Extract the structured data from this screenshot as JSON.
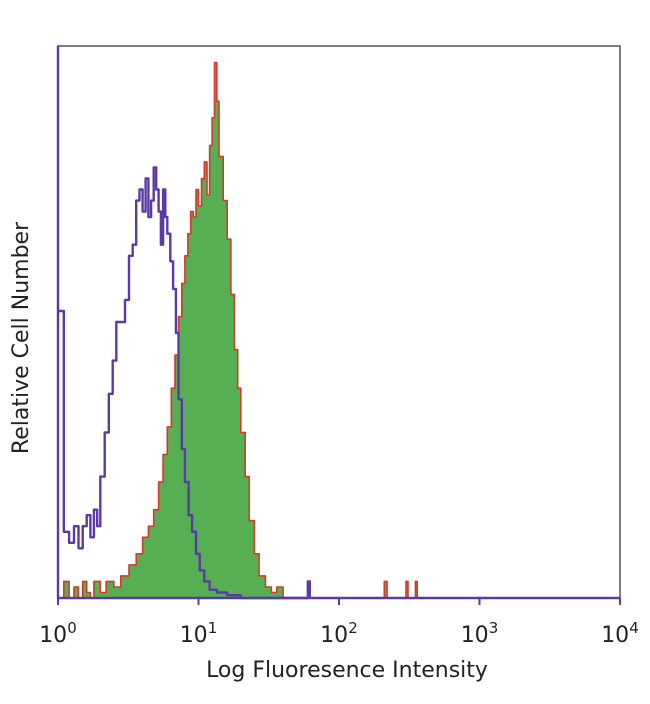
{
  "chart_data": {
    "type": "histogram",
    "title": "",
    "xlabel": "Log Fluoresence Intensity",
    "ylabel": "Relative Cell Number",
    "x_scale": "log10",
    "xlim": [
      1,
      10000
    ],
    "x_ticks": [
      {
        "value": 1,
        "base": "10",
        "exp": "0"
      },
      {
        "value": 10,
        "base": "10",
        "exp": "1"
      },
      {
        "value": 100,
        "base": "10",
        "exp": "2"
      },
      {
        "value": 1000,
        "base": "10",
        "exp": "3"
      },
      {
        "value": 10000,
        "base": "10",
        "exp": "4"
      }
    ],
    "ylim": [
      0,
      100
    ],
    "y_ticks_shown": false,
    "grid": false,
    "legend": "none",
    "series": [
      {
        "role": "isotype-control",
        "style": "outline",
        "color": "#5b3aa8",
        "points": [
          [
            1.0,
            52
          ],
          [
            1.1,
            12
          ],
          [
            1.2,
            10
          ],
          [
            1.3,
            13
          ],
          [
            1.4,
            9
          ],
          [
            1.5,
            13
          ],
          [
            1.6,
            15
          ],
          [
            1.7,
            11
          ],
          [
            1.8,
            16
          ],
          [
            1.9,
            13
          ],
          [
            2.0,
            22
          ],
          [
            2.15,
            30
          ],
          [
            2.3,
            37
          ],
          [
            2.45,
            43
          ],
          [
            2.6,
            50
          ],
          [
            2.8,
            50
          ],
          [
            3.0,
            54
          ],
          [
            3.2,
            62
          ],
          [
            3.4,
            64
          ],
          [
            3.6,
            72
          ],
          [
            3.8,
            74
          ],
          [
            4.0,
            70
          ],
          [
            4.2,
            76
          ],
          [
            4.4,
            69
          ],
          [
            4.6,
            72
          ],
          [
            4.8,
            78
          ],
          [
            5.0,
            74
          ],
          [
            5.2,
            70
          ],
          [
            5.4,
            64
          ],
          [
            5.6,
            74
          ],
          [
            5.8,
            69
          ],
          [
            6.0,
            66
          ],
          [
            6.3,
            61
          ],
          [
            6.6,
            56
          ],
          [
            6.9,
            48
          ],
          [
            7.2,
            36
          ],
          [
            7.6,
            27
          ],
          [
            8.0,
            21
          ],
          [
            8.5,
            15
          ],
          [
            9.0,
            12
          ],
          [
            9.6,
            8
          ],
          [
            10.2,
            5
          ],
          [
            11.0,
            3
          ],
          [
            12.0,
            1.5
          ],
          [
            13.5,
            1
          ],
          [
            16.0,
            0.5
          ],
          [
            20.0,
            0
          ],
          [
            58.0,
            0
          ],
          [
            60.0,
            3
          ],
          [
            62.0,
            0
          ]
        ]
      },
      {
        "role": "stained-sample",
        "style": "filled",
        "fill": "#56b053",
        "stroke": "#d43a2a",
        "points": [
          [
            1.0,
            0
          ],
          [
            1.1,
            3
          ],
          [
            1.2,
            0
          ],
          [
            1.3,
            2
          ],
          [
            1.4,
            0
          ],
          [
            1.5,
            3
          ],
          [
            1.6,
            1
          ],
          [
            1.7,
            0
          ],
          [
            1.8,
            3
          ],
          [
            2.0,
            1
          ],
          [
            2.2,
            3
          ],
          [
            2.5,
            2
          ],
          [
            2.8,
            4
          ],
          [
            3.2,
            6
          ],
          [
            3.6,
            8
          ],
          [
            4.0,
            11
          ],
          [
            4.4,
            13
          ],
          [
            4.8,
            16
          ],
          [
            5.2,
            21
          ],
          [
            5.6,
            26
          ],
          [
            6.0,
            31
          ],
          [
            6.4,
            38
          ],
          [
            6.8,
            44
          ],
          [
            7.2,
            51
          ],
          [
            7.6,
            57
          ],
          [
            8.0,
            62
          ],
          [
            8.4,
            66
          ],
          [
            8.8,
            70
          ],
          [
            9.2,
            69
          ],
          [
            9.6,
            74
          ],
          [
            10.0,
            71
          ],
          [
            10.5,
            76
          ],
          [
            11.0,
            79
          ],
          [
            11.5,
            73
          ],
          [
            12.0,
            82
          ],
          [
            12.5,
            87
          ],
          [
            13.0,
            97
          ],
          [
            13.5,
            90
          ],
          [
            14.0,
            80
          ],
          [
            15.0,
            72
          ],
          [
            16.0,
            65
          ],
          [
            17.0,
            55
          ],
          [
            18.0,
            45
          ],
          [
            19.0,
            38
          ],
          [
            20.0,
            30
          ],
          [
            21.5,
            22
          ],
          [
            23.0,
            14
          ],
          [
            25.0,
            8
          ],
          [
            27.0,
            4
          ],
          [
            30.0,
            2
          ],
          [
            33.0,
            1
          ],
          [
            36.0,
            2
          ],
          [
            40.0,
            0
          ],
          [
            200.0,
            0
          ],
          [
            210.0,
            3
          ],
          [
            220.0,
            0
          ],
          [
            290.0,
            0
          ],
          [
            300.0,
            3
          ],
          [
            310.0,
            0
          ],
          [
            340.0,
            0
          ],
          [
            350.0,
            3
          ],
          [
            360.0,
            0
          ],
          [
            10000.0,
            0
          ]
        ]
      }
    ]
  }
}
